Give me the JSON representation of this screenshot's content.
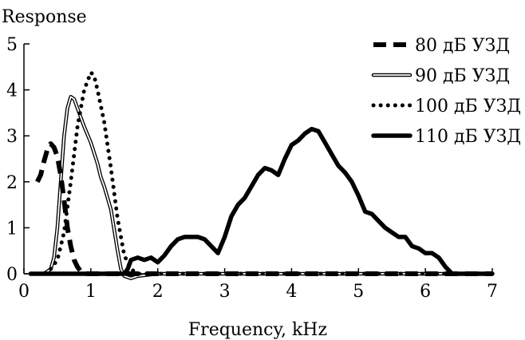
{
  "chart_data": {
    "type": "line",
    "title": "",
    "xlabel": "Frequency, kHz",
    "ylabel": "Response",
    "xlim": [
      0,
      7
    ],
    "ylim": [
      0,
      5
    ],
    "xticks": [
      0,
      1,
      2,
      3,
      4,
      5,
      6,
      7
    ],
    "yticks": [
      0,
      1,
      2,
      3,
      4,
      5
    ],
    "grid": false,
    "legend_position": "top-right",
    "series": [
      {
        "name": "80 дБ УЗД",
        "style": "dashed",
        "color": "#000000",
        "x": [
          0.2,
          0.25,
          0.3,
          0.35,
          0.4,
          0.45,
          0.5,
          0.55,
          0.6,
          0.65,
          0.7,
          0.75,
          0.8,
          0.85,
          0.9,
          1.0,
          1.2,
          1.5,
          2.0,
          3.0,
          4.0,
          5.0,
          6.0,
          7.0
        ],
        "y": [
          2.0,
          2.15,
          2.45,
          2.7,
          2.83,
          2.75,
          2.55,
          2.15,
          1.6,
          1.0,
          0.6,
          0.3,
          0.15,
          0.05,
          0.0,
          0.0,
          0.0,
          0.0,
          0.0,
          0.0,
          0.0,
          0.0,
          0.0,
          0.0
        ]
      },
      {
        "name": "90 дБ УЗД",
        "style": "double",
        "color": "#000000",
        "x": [
          0.1,
          0.3,
          0.4,
          0.45,
          0.5,
          0.55,
          0.6,
          0.65,
          0.7,
          0.75,
          0.8,
          0.9,
          1.0,
          1.1,
          1.15,
          1.2,
          1.3,
          1.4,
          1.45,
          1.5,
          1.6,
          1.7,
          2.0,
          3.0,
          4.0,
          5.0,
          6.0,
          7.0
        ],
        "y": [
          0.0,
          0.0,
          0.1,
          0.35,
          1.0,
          2.0,
          3.0,
          3.6,
          3.85,
          3.8,
          3.6,
          3.2,
          2.85,
          2.4,
          2.1,
          1.9,
          1.4,
          0.5,
          0.1,
          -0.05,
          -0.1,
          -0.05,
          0.0,
          0.0,
          0.0,
          0.0,
          0.0,
          0.0
        ]
      },
      {
        "name": "100 дБ УЗД",
        "style": "dotted",
        "color": "#000000",
        "x": [
          0.1,
          0.3,
          0.4,
          0.5,
          0.6,
          0.7,
          0.8,
          0.9,
          1.0,
          1.05,
          1.1,
          1.2,
          1.3,
          1.4,
          1.5,
          1.6,
          1.7,
          1.8,
          2.0,
          3.0,
          4.0,
          5.0,
          6.0,
          7.0
        ],
        "y": [
          0.0,
          0.0,
          0.1,
          0.3,
          0.9,
          2.0,
          3.2,
          4.0,
          4.38,
          4.3,
          4.0,
          3.3,
          2.3,
          1.2,
          0.4,
          0.1,
          0.0,
          0.0,
          0.0,
          0.0,
          0.0,
          0.0,
          0.0,
          0.0
        ]
      },
      {
        "name": "110 дБ УЗД",
        "style": "solid",
        "color": "#000000",
        "x": [
          0.1,
          1.0,
          1.5,
          1.55,
          1.6,
          1.7,
          1.8,
          1.9,
          2.0,
          2.1,
          2.2,
          2.3,
          2.4,
          2.5,
          2.6,
          2.7,
          2.8,
          2.9,
          3.0,
          3.1,
          3.2,
          3.3,
          3.4,
          3.5,
          3.6,
          3.7,
          3.8,
          3.9,
          4.0,
          4.1,
          4.2,
          4.3,
          4.4,
          4.5,
          4.6,
          4.7,
          4.8,
          4.9,
          5.0,
          5.1,
          5.2,
          5.3,
          5.4,
          5.5,
          5.6,
          5.7,
          5.8,
          5.9,
          6.0,
          6.1,
          6.2,
          6.3,
          6.4,
          6.5,
          7.0
        ],
        "y": [
          0.0,
          0.0,
          0.0,
          0.1,
          0.3,
          0.35,
          0.3,
          0.35,
          0.25,
          0.4,
          0.6,
          0.75,
          0.8,
          0.8,
          0.8,
          0.75,
          0.6,
          0.45,
          0.8,
          1.25,
          1.5,
          1.65,
          1.9,
          2.15,
          2.3,
          2.25,
          2.15,
          2.5,
          2.8,
          2.9,
          3.05,
          3.15,
          3.1,
          2.85,
          2.6,
          2.35,
          2.2,
          2.0,
          1.7,
          1.35,
          1.3,
          1.15,
          1.0,
          0.9,
          0.8,
          0.8,
          0.6,
          0.55,
          0.45,
          0.45,
          0.35,
          0.15,
          0.0,
          0.0,
          0.0
        ]
      }
    ]
  }
}
